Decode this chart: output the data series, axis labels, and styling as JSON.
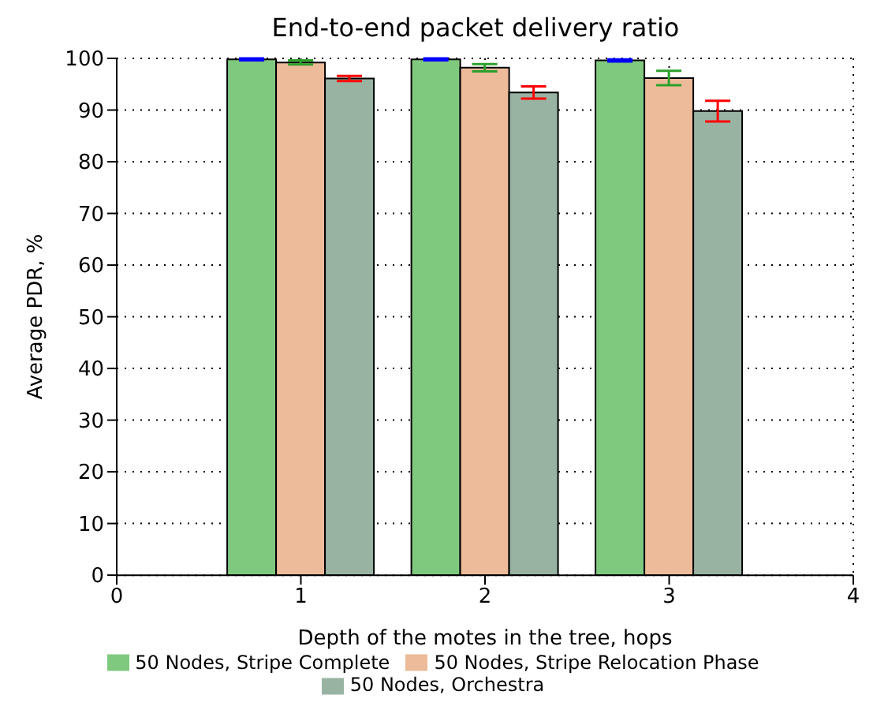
{
  "chart_data": {
    "type": "bar",
    "title": "End-to-end packet delivery ratio",
    "xlabel": "Depth of the motes in the tree, hops",
    "ylabel": "Average PDR, %",
    "x": [
      1,
      2,
      3
    ],
    "series": [
      {
        "name": "50 Nodes, Stripe Complete",
        "color": "#7fc97f",
        "values": [
          99.8,
          99.8,
          99.6
        ],
        "errors": [
          0.2,
          0.2,
          0.2
        ]
      },
      {
        "name": "50 Nodes, Stripe Relocation Phase",
        "color": "#edbb99",
        "values": [
          99.2,
          98.2,
          96.2
        ],
        "errors": [
          0.4,
          0.7,
          1.4
        ]
      },
      {
        "name": "50 Nodes, Orchestra",
        "color": "#99b3a3",
        "values": [
          96.1,
          93.4,
          89.8
        ],
        "errors": [
          0.5,
          1.2,
          2.0
        ]
      }
    ],
    "xlim": [
      0,
      4
    ],
    "xticks": [
      0,
      1,
      2,
      3,
      4
    ],
    "ylim": [
      0,
      100
    ],
    "yticks": [
      0,
      10,
      20,
      30,
      40,
      50,
      60,
      70,
      80,
      90,
      100
    ],
    "grid": true,
    "legend": "bottom"
  }
}
